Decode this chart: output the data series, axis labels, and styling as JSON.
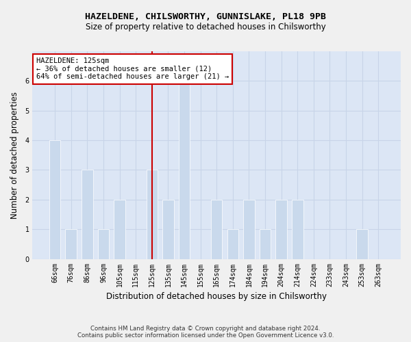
{
  "title": "HAZELDENE, CHILSWORTHY, GUNNISLAKE, PL18 9PB",
  "subtitle": "Size of property relative to detached houses in Chilsworthy",
  "xlabel": "Distribution of detached houses by size in Chilsworthy",
  "ylabel": "Number of detached properties",
  "categories": [
    "66sqm",
    "76sqm",
    "86sqm",
    "96sqm",
    "105sqm",
    "115sqm",
    "125sqm",
    "135sqm",
    "145sqm",
    "155sqm",
    "165sqm",
    "174sqm",
    "184sqm",
    "194sqm",
    "204sqm",
    "214sqm",
    "224sqm",
    "233sqm",
    "243sqm",
    "253sqm",
    "263sqm"
  ],
  "values": [
    4,
    1,
    3,
    1,
    2,
    0,
    3,
    2,
    6,
    0,
    2,
    1,
    2,
    1,
    2,
    2,
    0,
    0,
    0,
    1,
    0
  ],
  "highlight_index": 6,
  "bar_color": "#c9d9ec",
  "highlight_line_color": "#cc0000",
  "ylim": [
    0,
    7
  ],
  "yticks": [
    0,
    1,
    2,
    3,
    4,
    5,
    6,
    7
  ],
  "annotation_text": "HAZELDENE: 125sqm\n← 36% of detached houses are smaller (12)\n64% of semi-detached houses are larger (21) →",
  "annotation_box_color": "#ffffff",
  "annotation_box_edge": "#cc0000",
  "grid_color": "#c8d4e8",
  "bg_color": "#dce6f5",
  "fig_bg_color": "#f0f0f0",
  "title_fontsize": 9.5,
  "subtitle_fontsize": 8.5,
  "footer_line1": "Contains HM Land Registry data © Crown copyright and database right 2024.",
  "footer_line2": "Contains public sector information licensed under the Open Government Licence v3.0."
}
